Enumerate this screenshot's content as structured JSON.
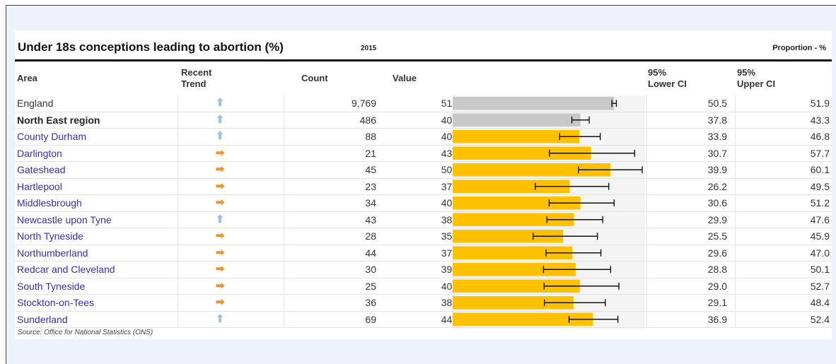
{
  "header": {
    "title": "Under 18s conceptions leading to abortion (%)",
    "year": "2015",
    "measure": "Proportion - %"
  },
  "columns": {
    "area": "Area",
    "trend_line1": "Recent",
    "trend_line2": "Trend",
    "count": "Count",
    "value": "Value",
    "lcl_line1": "95%",
    "lcl_line2": "Lower CI",
    "ucl_line1": "95%",
    "ucl_line2": "Upper CI"
  },
  "colors": {
    "bar_highlight": "#ffc000",
    "bar_comparator": "#c8c8c8",
    "trend_up": "#9fbfe8",
    "trend_right": "#f0932b",
    "area_link": "#3a2fa6"
  },
  "chart_data": {
    "type": "bar",
    "orientation": "horizontal",
    "title": "Under 18s conceptions leading to abortion (%)",
    "unit": "Proportion - %",
    "xlim": [
      0,
      61
    ],
    "error_bars": true,
    "rows": [
      {
        "area": "England",
        "trend": "up",
        "count": "9,769",
        "value": 51.2,
        "value_text": "51.2",
        "lcl": 50.5,
        "lcl_text": "50.5",
        "ucl": 51.9,
        "ucl_text": "51.9",
        "style": "comparator",
        "bold": false,
        "link": false
      },
      {
        "area": "North East region",
        "trend": "up",
        "count": "486",
        "value": 40.5,
        "value_text": "40.5",
        "lcl": 37.8,
        "lcl_text": "37.8",
        "ucl": 43.3,
        "ucl_text": "43.3",
        "style": "comparator",
        "bold": true,
        "link": false
      },
      {
        "area": "County Durham",
        "trend": "up",
        "count": "88",
        "value": 40.2,
        "value_text": "40.2",
        "lcl": 33.9,
        "lcl_text": "33.9",
        "ucl": 46.8,
        "ucl_text": "46.8",
        "style": "highlight",
        "bold": false,
        "link": true
      },
      {
        "area": "Darlington",
        "trend": "right",
        "count": "21",
        "value": 43.8,
        "value_text": "43.8",
        "lcl": 30.7,
        "lcl_text": "30.7",
        "ucl": 57.7,
        "ucl_text": "57.7",
        "style": "highlight",
        "bold": false,
        "link": true
      },
      {
        "area": "Gateshead",
        "trend": "right",
        "count": "45",
        "value": 50.0,
        "value_text": "50.0",
        "lcl": 39.9,
        "lcl_text": "39.9",
        "ucl": 60.1,
        "ucl_text": "60.1",
        "style": "highlight",
        "bold": false,
        "link": true
      },
      {
        "area": "Hartlepool",
        "trend": "right",
        "count": "23",
        "value": 37.1,
        "value_text": "37.1",
        "lcl": 26.2,
        "lcl_text": "26.2",
        "ucl": 49.5,
        "ucl_text": "49.5",
        "style": "highlight",
        "bold": false,
        "link": true
      },
      {
        "area": "Middlesbrough",
        "trend": "right",
        "count": "34",
        "value": 40.5,
        "value_text": "40.5",
        "lcl": 30.6,
        "lcl_text": "30.6",
        "ucl": 51.2,
        "ucl_text": "51.2",
        "style": "highlight",
        "bold": false,
        "link": true
      },
      {
        "area": "Newcastle upon Tyne",
        "trend": "up",
        "count": "43",
        "value": 38.4,
        "value_text": "38.4",
        "lcl": 29.9,
        "lcl_text": "29.9",
        "ucl": 47.6,
        "ucl_text": "47.6",
        "style": "highlight",
        "bold": false,
        "link": true
      },
      {
        "area": "North Tyneside",
        "trend": "right",
        "count": "28",
        "value": 35.0,
        "value_text": "35.0",
        "lcl": 25.5,
        "lcl_text": "25.5",
        "ucl": 45.9,
        "ucl_text": "45.9",
        "style": "highlight",
        "bold": false,
        "link": true
      },
      {
        "area": "Northumberland",
        "trend": "right",
        "count": "44",
        "value": 37.9,
        "value_text": "37.9",
        "lcl": 29.6,
        "lcl_text": "29.6",
        "ucl": 47.0,
        "ucl_text": "47.0",
        "style": "highlight",
        "bold": false,
        "link": true
      },
      {
        "area": "Redcar and Cleveland",
        "trend": "right",
        "count": "30",
        "value": 39.0,
        "value_text": "39.0",
        "lcl": 28.8,
        "lcl_text": "28.8",
        "ucl": 50.1,
        "ucl_text": "50.1",
        "style": "highlight",
        "bold": false,
        "link": true
      },
      {
        "area": "South Tyneside",
        "trend": "right",
        "count": "25",
        "value": 40.3,
        "value_text": "40.3",
        "lcl": 29.0,
        "lcl_text": "29.0",
        "ucl": 52.7,
        "ucl_text": "52.7",
        "style": "highlight",
        "bold": false,
        "link": true
      },
      {
        "area": "Stockton-on-Tees",
        "trend": "right",
        "count": "36",
        "value": 38.3,
        "value_text": "38.3",
        "lcl": 29.1,
        "lcl_text": "29.1",
        "ucl": 48.4,
        "ucl_text": "48.4",
        "style": "highlight",
        "bold": false,
        "link": true
      },
      {
        "area": "Sunderland",
        "trend": "up",
        "count": "69",
        "value": 44.5,
        "value_text": "44.5",
        "lcl": 36.9,
        "lcl_text": "36.9",
        "ucl": 52.4,
        "ucl_text": "52.4",
        "style": "highlight",
        "bold": false,
        "link": true
      }
    ]
  },
  "footer": {
    "source": "Source: Office for National Statistics (ONS)"
  }
}
